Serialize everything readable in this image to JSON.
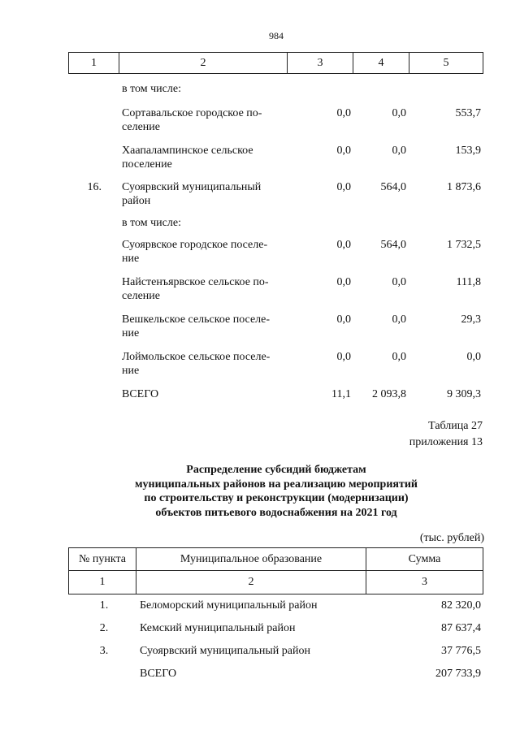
{
  "page_number": "984",
  "table1": {
    "header": [
      "1",
      "2",
      "3",
      "4",
      "5"
    ],
    "rows": [
      {
        "num": "",
        "name": [
          "в том числе:"
        ],
        "c3": "",
        "c4": "",
        "c5": ""
      },
      {
        "num": "",
        "name": [
          "Сортавальское городское по-",
          "селение"
        ],
        "c3": "0,0",
        "c4": "0,0",
        "c5": "553,7"
      },
      {
        "num": "",
        "name": [
          "Хаапалампинское сельское",
          "поселение"
        ],
        "c3": "0,0",
        "c4": "0,0",
        "c5": "153,9"
      },
      {
        "num": "16.",
        "name": [
          "Суоярвский муниципальный",
          "район"
        ],
        "c3": "0,0",
        "c4": "564,0",
        "c5": "1 873,6"
      },
      {
        "num": "",
        "name": [
          "в том числе:"
        ],
        "c3": "",
        "c4": "",
        "c5": ""
      },
      {
        "num": "",
        "name": [
          "Суоярвское городское поселе-",
          "ние"
        ],
        "c3": "0,0",
        "c4": "564,0",
        "c5": "1 732,5"
      },
      {
        "num": "",
        "name": [
          "Найстенъярвское сельское по-",
          "селение"
        ],
        "c3": "0,0",
        "c4": "0,0",
        "c5": "111,8"
      },
      {
        "num": "",
        "name": [
          "Вешкельское сельское поселе-",
          "ние"
        ],
        "c3": "0,0",
        "c4": "0,0",
        "c5": "29,3"
      },
      {
        "num": "",
        "name": [
          "Лоймольское сельское поселе-",
          "ние"
        ],
        "c3": "0,0",
        "c4": "0,0",
        "c5": "0,0"
      },
      {
        "num": "",
        "name": [
          "ВСЕГО"
        ],
        "c3": "11,1",
        "c4": "2 093,8",
        "c5": "9 309,3"
      }
    ]
  },
  "table_ref": {
    "line1": "Таблица 27",
    "line2": "приложения 13"
  },
  "title_lines": [
    "Распределение субсидий бюджетам",
    "муниципальных районов на реализацию мероприятий",
    "по строительству и реконструкции (модернизации)",
    "объектов питьевого водоснабжения на 2021 год"
  ],
  "units": "(тыс. рублей)",
  "table2": {
    "header": [
      "№ пункта",
      "Муниципальное образование",
      "Сумма"
    ],
    "col_numbers": [
      "1",
      "2",
      "3"
    ],
    "rows": [
      {
        "num": "1.",
        "name": "Беломорский муниципальный район",
        "sum": "82 320,0"
      },
      {
        "num": "2.",
        "name": "Кемский муниципальный район",
        "sum": "87 637,4"
      },
      {
        "num": "3.",
        "name": "Суоярвский муниципальный район",
        "sum": "37 776,5"
      },
      {
        "num": "",
        "name": "ВСЕГО",
        "sum": "207 733,9"
      }
    ]
  }
}
